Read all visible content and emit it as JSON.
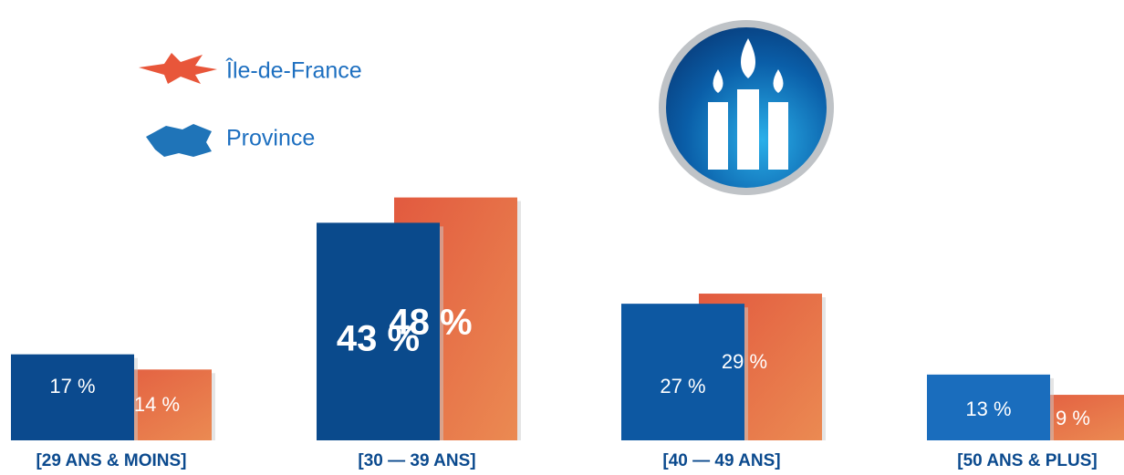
{
  "chart_data": {
    "type": "bar",
    "categories": [
      "[29 ANS & MOINS]",
      "[30 — 39 ANS]",
      "[40 — 49 ANS]",
      "[50 ANS & PLUS]"
    ],
    "series": [
      {
        "name": "Province",
        "color": "#0b4a8e",
        "values": [
          17,
          43,
          27,
          13
        ],
        "value_labels": [
          "17 %",
          "43 %",
          "27 %",
          "13 %"
        ]
      },
      {
        "name": "Île-de-France",
        "color": "#e8744a",
        "values": [
          14,
          48,
          29,
          9
        ],
        "value_labels": [
          "14 %",
          "48 %",
          "29 %",
          "9 %"
        ]
      }
    ]
  }
}
